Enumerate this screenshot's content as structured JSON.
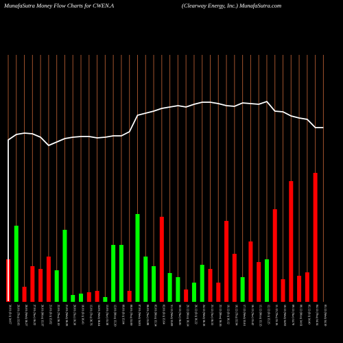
{
  "header": {
    "left": "MunafaSutra  Money Flow  Charts for CWEN.A",
    "right": "(Clearway Energy, Inc.) MunafaSutra.com"
  },
  "chart_data": {
    "type": "bar",
    "title": "MunafaSutra  Money Flow  Charts for CWEN.A",
    "subtitle": "(Clearway Energy, Inc.) MunafaSutra.com",
    "categories": [
      "Fri 30 Jan 2026",
      "Thu 29 Jan 2026",
      "Wed 28 Jan 2026",
      "Tue 27 Jan 2026",
      "Mon 26 Jan 2026",
      "Fri 23 Jan 2026",
      "Thu 22 Jan 2026",
      "Wed 21 Jan 2026",
      "Tue 20 Jan 2026",
      "Fri 16 Jan 2026",
      "Thu 15 Jan 2026",
      "Wed 14 Jan 2026",
      "Tue 13 Jan 2026",
      "Mon 12 Jan 2026",
      "Fri 09 Jan 2026",
      "Thu 08 Jan 2026",
      "Wed 07 Jan 2026",
      "Tue 06 Jan 2026",
      "Mon 05 Jan 2026",
      "Fri 02 Jan 2026",
      "Wed 31 Dec 2025",
      "Tue 30 Dec 2025",
      "Mon 29 Dec 2025",
      "Fri 26 Dec 2025",
      "Wed 24 Dec 2025",
      "Tue 23 Dec 2025",
      "Mon 22 Dec 2025",
      "Fri 19 Dec 2025",
      "Thu 18 Dec 2025",
      "Wed 17 Dec 2025",
      "Tue 16 Dec 2025",
      "Mon 15 Dec 2025",
      "Fri 12 Dec 2025",
      "Thu 11 Dec 2025",
      "Wed 10 Dec 2025",
      "Tue 09 Dec 2025",
      "Mon 08 Dec 2025",
      "Fri 05 Dec 2025",
      "Thu 04 Dec 2025",
      "Wed 03 Dec 2025"
    ],
    "x_labels": [
      "30.01 (Fri) 34.67",
      "29.01 (Thu) 35.05",
      "28.01 (Wed) 36.27",
      "27.01 (Tue) 36.22",
      "26.01 (Mon) 35.97",
      "23.01 (Fri) 35.82",
      "22.01 (Thu) 36.10",
      "21.01 (Wed) 36.28",
      "20.01 (Tue) 36.30",
      "16.01 (Fri) 36.43",
      "15.01 (Thu) 36.76",
      "14.01 (Wed) 36.64",
      "13.01 (Tue) 35.38",
      "12.01 (Mon) 35.20",
      "09.01 (Fri) 35.04",
      "08.01 (Thu) 35.00",
      "07.01 (Wed) 34.81",
      "06.01 (Tue) 35.08",
      "05.01 (Mon) 35.34",
      "02.01 (Fri) 35.64",
      "31.12 (Wed) 35.89",
      "30.12 (Tue) 36.01",
      "29.12 (Mon) 36.14",
      "26.12 (Fri) 36.22",
      "24.12 (Wed) 36.18",
      "23.12 (Tue) 36.33",
      "22.12 (Mon) 36.16",
      "19.12 (Fri) 36.12",
      "18.12 (Thu) 35.94",
      "17.12 (Wed) 35.61",
      "16.12 (Tue) 35.42",
      "15.12 (Mon) 35.35",
      "12.12 (Fri) 35.25",
      "11.12 (Thu) 35.16",
      "10.12 (Wed) 34.92",
      "09.12 (Tue) 34.70",
      "08.12 (Mon) 34.61",
      "05.12 (Fri) 34.40",
      "04.12 (Thu) 34.34",
      "03.12 (Wed) 34.10"
    ],
    "series": [
      {
        "type": "bar",
        "values": [
          62,
          111,
          22,
          52,
          48,
          66,
          46,
          105,
          10,
          12,
          14,
          16,
          7,
          83,
          83,
          16,
          128,
          66,
          52,
          124,
          42,
          36,
          18,
          28,
          54,
          48,
          28,
          118,
          70,
          36,
          88,
          58,
          62,
          135,
          33,
          176,
          38,
          43,
          188,
          0
        ],
        "bar_colors": [
          "red",
          "green",
          "red",
          "red",
          "red",
          "red",
          "green",
          "green",
          "green",
          "green",
          "red",
          "red",
          "green",
          "green",
          "green",
          "red",
          "green",
          "green",
          "green",
          "red",
          "green",
          "green",
          "red",
          "green",
          "green",
          "red",
          "red",
          "red",
          "red",
          "green",
          "red",
          "red",
          "green",
          "red",
          "red",
          "red",
          "red",
          "red",
          "red",
          "red"
        ]
      },
      {
        "type": "line",
        "values": [
          236,
          244,
          246,
          245,
          240,
          228,
          233,
          238,
          240,
          241,
          241,
          239,
          240,
          242,
          242,
          248,
          272,
          275,
          278,
          282,
          284,
          286,
          284,
          288,
          291,
          291,
          289,
          286,
          285,
          290,
          289,
          288,
          292,
          278,
          277,
          271,
          268,
          266,
          254,
          254
        ]
      }
    ],
    "ylim": [
      0,
      360
    ],
    "grid": true,
    "colors": {
      "red": "#ff0000",
      "green": "#00ff00",
      "line": "#ffffff",
      "grid": "#a0522d",
      "background": "#000000"
    }
  }
}
